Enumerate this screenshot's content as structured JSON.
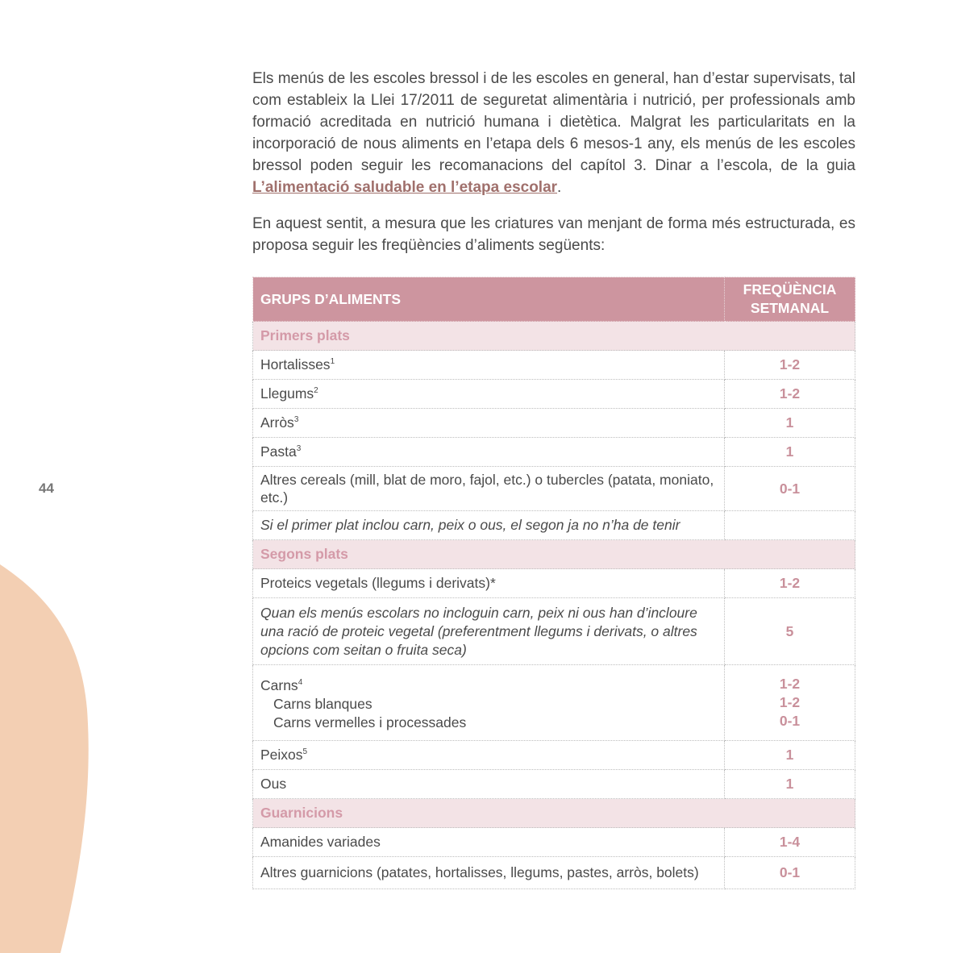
{
  "page_number": "44",
  "paragraphs": [
    {
      "before": "Els menús de les escoles bressol i de les escoles en general, han d’estar supervisats, tal com estableix la Llei 17/2011 de seguretat alimentària i nutrició, per professionals amb formació acreditada en nutrició humana i dietètica. Malgrat les particularitats en la incorporació de nous aliments en l’etapa dels 6 mesos-1 any, els menús de les escoles bressol poden seguir les recomanacions del capítol 3. Dinar a l’escola, de la guia ",
      "link": "L’alimentació saludable en l’etapa escolar",
      "after": "."
    },
    {
      "before": "En aquest sentit, a mesura que les criatures van menjant de forma més estructurada, es proposa seguir les freqüències d’aliments següents:"
    }
  ],
  "table": {
    "header": {
      "col1": "GRUPS D’ALIMENTS",
      "col2_line1": "FREQÜÈNCIA",
      "col2_line2": "SETMANAL"
    },
    "sections": [
      {
        "title": "Primers plats",
        "rows": [
          {
            "label": "Hortalisses",
            "sup": "1",
            "value": "1-2"
          },
          {
            "label": "Llegums",
            "sup": "2",
            "value": "1-2"
          },
          {
            "label": "Arròs",
            "sup": "3",
            "value": "1"
          },
          {
            "label": "Pasta",
            "sup": "3",
            "value": "1"
          },
          {
            "label": "Altres cereals (mill, blat de moro, fajol, etc.) o tubercles (patata, moniato, etc.)",
            "value": "0-1"
          },
          {
            "label": "Si el primer plat inclou carn, peix o ous, el segon ja no n’ha de tenir",
            "value": ""
          }
        ]
      },
      {
        "title": "Segons plats",
        "rows": [
          {
            "label": "Proteics vegetals (llegums i derivats)*",
            "value": "1-2"
          },
          {
            "label": "Quan els menús escolars no incloguin carn, peix ni ous han d’incloure una ració de proteic vegetal (preferentment llegums i derivats, o altres opcions com seitan o fruita seca)",
            "value": "5"
          },
          {
            "label": "Carns",
            "sup": "4",
            "value": "1-2",
            "sub": [
              {
                "label": "Carns blanques",
                "value": "1-2"
              },
              {
                "label": "Carns vermelles i processades",
                "value": "0-1"
              }
            ]
          },
          {
            "label": "Peixos",
            "sup": "5",
            "value": "1"
          },
          {
            "label": "Ous",
            "value": "1"
          }
        ]
      },
      {
        "title": "Guarnicions",
        "rows": [
          {
            "label": "Amanides variades",
            "value": "1-4"
          },
          {
            "label": "Altres guarnicions (patates, hortalisses, llegums, pastes, arròs, bolets)",
            "value": "0-1"
          }
        ]
      }
    ]
  },
  "colors": {
    "header_bg": "#cd959f",
    "section_bg": "#f3e3e6",
    "value_text": "#c9909b",
    "link": "#a0706c",
    "decor_blob": "#f3cfb3"
  }
}
